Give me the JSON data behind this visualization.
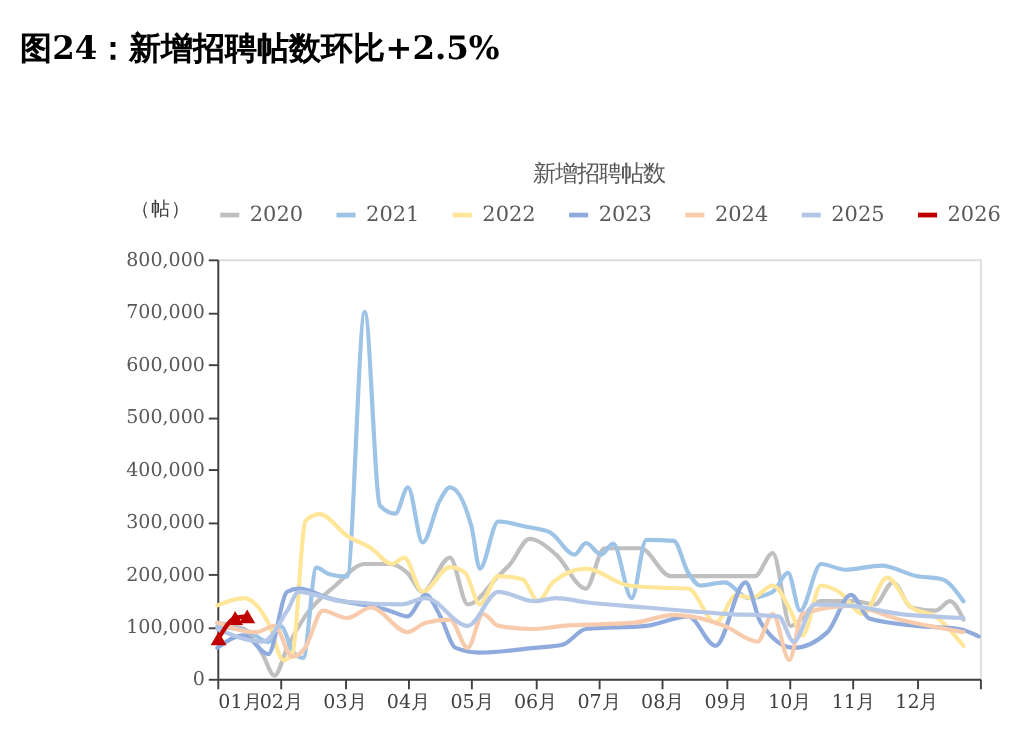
{
  "chart_data": {
    "type": "line",
    "title": "图24：新增招聘帖数环比+2.5%",
    "subtitle": "新增招聘帖数",
    "ylabel": "（帖）",
    "xlim": [
      1,
      13
    ],
    "xticks": [
      {
        "value": 1,
        "label": "01月"
      },
      {
        "value": 2,
        "label": "02月"
      },
      {
        "value": 3,
        "label": "03月"
      },
      {
        "value": 4,
        "label": "04月"
      },
      {
        "value": 5,
        "label": "05月"
      },
      {
        "value": 6,
        "label": "06月"
      },
      {
        "value": 7,
        "label": "07月"
      },
      {
        "value": 8,
        "label": "08月"
      },
      {
        "value": 9,
        "label": "09月"
      },
      {
        "value": 10,
        "label": "10月"
      },
      {
        "value": 11,
        "label": "11月"
      },
      {
        "value": 12,
        "label": "12月"
      },
      {
        "value": 13,
        "label": null
      }
    ],
    "ylim": [
      0,
      800000
    ],
    "yticks": [
      0,
      {
        "value": 100000,
        "label": "100,000"
      },
      {
        "value": 200000,
        "label": "200,000"
      },
      {
        "value": 300000,
        "label": "300,000"
      },
      {
        "value": 400000,
        "label": "400,000"
      },
      {
        "value": 500000,
        "label": "500,000"
      },
      {
        "value": 600000,
        "label": "600,000"
      },
      {
        "value": 700000,
        "label": "700,000"
      },
      {
        "value": 800000,
        "label": "800,000"
      }
    ],
    "grid": false,
    "legend": "top",
    "line_style": "solid",
    "marker": "none",
    "series": [
      {
        "name": "2020",
        "color": "#bfbfbf",
        "x": [
          1,
          1.42,
          1.71,
          1.9,
          2.1,
          2.38,
          2.86,
          3.32,
          3.71,
          3.99,
          4.23,
          4.66,
          4.94,
          5.42,
          5.61,
          5.91,
          6.33,
          6.8,
          7.09,
          7.66,
          8.13,
          8.7,
          9.46,
          9.74,
          10.02,
          10.5,
          11.02,
          11.35,
          11.63,
          11.92,
          12.3,
          12.53,
          12.74
        ],
        "values": [
          107000,
          95000,
          47000,
          6000,
          59000,
          119000,
          178000,
          219000,
          219000,
          202000,
          166000,
          231000,
          142000,
          196000,
          219000,
          267000,
          237000,
          172000,
          249000,
          249000,
          196000,
          196000,
          196000,
          240000,
          101000,
          148000,
          148000,
          142000,
          184000,
          136000,
          130000,
          148000,
          113000
        ]
      },
      {
        "name": "2021",
        "color": "#9dc3e6",
        "x": [
          1,
          1.5,
          1.8,
          2.0,
          2.2,
          2.35,
          2.56,
          2.75,
          3.04,
          3.32,
          3.56,
          3.8,
          4.0,
          4.23,
          4.5,
          4.66,
          5.0,
          5.13,
          5.42,
          5.86,
          6.24,
          6.62,
          6.8,
          7.04,
          7.23,
          7.52,
          7.75,
          8.18,
          8.41,
          8.6,
          8.98,
          9.36,
          9.74,
          9.98,
          10.17,
          10.5,
          10.88,
          11.45,
          12.0,
          12.4,
          12.74
        ],
        "values": [
          100000,
          90000,
          70000,
          100000,
          50000,
          40000,
          212000,
          200000,
          195000,
          700000,
          330000,
          315000,
          365000,
          260000,
          340000,
          365000,
          290000,
          210000,
          300000,
          290000,
          279000,
          237000,
          259000,
          237000,
          258000,
          154000,
          265000,
          263000,
          202000,
          178000,
          184000,
          154000,
          166000,
          202000,
          130000,
          219000,
          208000,
          216000,
          196000,
          190000,
          148000
        ]
      },
      {
        "name": "2022",
        "color": "#ffe699",
        "x": [
          1,
          1.42,
          1.8,
          2.04,
          2.18,
          2.39,
          2.61,
          3.04,
          3.42,
          3.75,
          3.94,
          4.23,
          4.66,
          4.9,
          5.13,
          5.42,
          5.8,
          6.05,
          6.28,
          6.8,
          7.47,
          7.94,
          8.41,
          8.84,
          9.17,
          9.41,
          9.74,
          10.02,
          10.21,
          10.5,
          10.78,
          11.16,
          11.54,
          11.92,
          12.3,
          12.74
        ],
        "values": [
          140000,
          154000,
          107000,
          36000,
          47000,
          302000,
          314000,
          273000,
          249000,
          219000,
          231000,
          166000,
          213000,
          202000,
          142000,
          196000,
          190000,
          148000,
          184000,
          210000,
          178000,
          174000,
          172000,
          107000,
          160000,
          154000,
          178000,
          130000,
          83000,
          178000,
          166000,
          124000,
          193000,
          136000,
          119000,
          63000
        ]
      },
      {
        "name": "2023",
        "color": "#8faadc",
        "x": [
          1,
          1.42,
          1.8,
          2.1,
          2.28,
          2.75,
          3.71,
          3.99,
          4.28,
          4.51,
          4.75,
          5.13,
          5.99,
          6.43,
          6.8,
          7.75,
          8.41,
          8.84,
          9.31,
          9.55,
          10.07,
          10.6,
          10.97,
          11.26,
          12.0,
          12.67,
          12.98
        ],
        "values": [
          59000,
          83000,
          47000,
          166000,
          172000,
          154000,
          130000,
          119000,
          160000,
          119000,
          59000,
          50000,
          59000,
          65000,
          95000,
          101000,
          119000,
          63000,
          184000,
          107000,
          59000,
          89000,
          160000,
          115000,
          101000,
          95000,
          81000
        ]
      },
      {
        "name": "2024",
        "color": "#f8cbad",
        "x": [
          1,
          1.61,
          1.9,
          2.18,
          2.38,
          2.66,
          3.04,
          3.42,
          3.99,
          4.28,
          4.66,
          4.94,
          5.18,
          5.42,
          5.99,
          6.43,
          7.56,
          8.18,
          8.98,
          9.5,
          9.74,
          10.0,
          10.21,
          10.97,
          11.73,
          12.74
        ],
        "values": [
          107000,
          89000,
          101000,
          42000,
          59000,
          130000,
          116000,
          136000,
          89000,
          107000,
          113000,
          59000,
          124000,
          101000,
          95000,
          101000,
          107000,
          122000,
          101000,
          71000,
          124000,
          36000,
          124000,
          139000,
          113000,
          89000
        ]
      },
      {
        "name": "2025",
        "color": "#b4c7e7",
        "x": [
          1,
          1.71,
          2.1,
          2.28,
          2.94,
          3.9,
          4.28,
          4.94,
          5.42,
          5.99,
          6.33,
          6.8,
          7.75,
          8.98,
          9.83,
          10.07,
          10.4,
          10.97,
          11.73,
          12.74
        ],
        "values": [
          95000,
          71000,
          130000,
          166000,
          148000,
          142000,
          154000,
          101000,
          166000,
          148000,
          154000,
          146000,
          136000,
          124000,
          119000,
          71000,
          142000,
          139000,
          124000,
          116000
        ]
      },
      {
        "name": "2026",
        "color": "#c00000",
        "marker": "triangle",
        "x": [
          1.02,
          1.28,
          1.47
        ],
        "values": [
          77000,
          116000,
          119000
        ]
      }
    ]
  }
}
